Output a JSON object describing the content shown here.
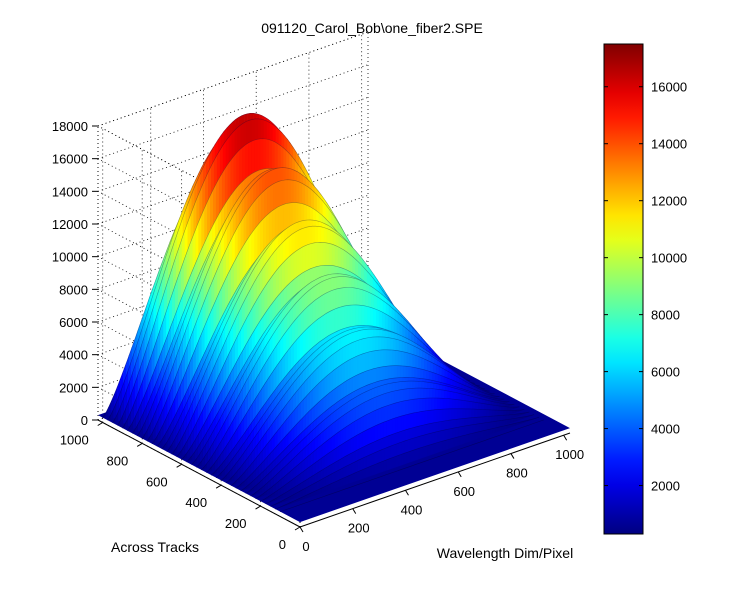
{
  "figure": {
    "title": "091120_Carol_Bob\\one_fiber2.SPE"
  },
  "chart_data": {
    "type": "surface",
    "title": "091120_Carol_Bob\\one_fiber2.SPE",
    "xlabel": "Wavelength Dim/Pixel",
    "ylabel": "Across Tracks",
    "zlabel": "",
    "xlim": [
      0,
      1024
    ],
    "ylim": [
      0,
      1024
    ],
    "zlim": [
      0,
      18000
    ],
    "x_ticks": [
      "0",
      "200",
      "400",
      "600",
      "800",
      "1000"
    ],
    "y_ticks": [
      "0",
      "200",
      "400",
      "600",
      "800",
      "1000"
    ],
    "z_ticks": [
      "0",
      "2000",
      "4000",
      "6000",
      "8000",
      "10000",
      "12000",
      "14000",
      "16000",
      "18000"
    ],
    "grid": true,
    "colormap": "jet",
    "colorbar": {
      "location": "right",
      "range": [
        300,
        17500
      ],
      "ticks": [
        "2000",
        "4000",
        "6000",
        "8000",
        "10000",
        "12000",
        "14000",
        "16000"
      ]
    },
    "baseline": 300,
    "peak": 17500,
    "signal_x_range": [
      0,
      1000
    ],
    "signal_y_range": [
      100,
      1000
    ]
  }
}
